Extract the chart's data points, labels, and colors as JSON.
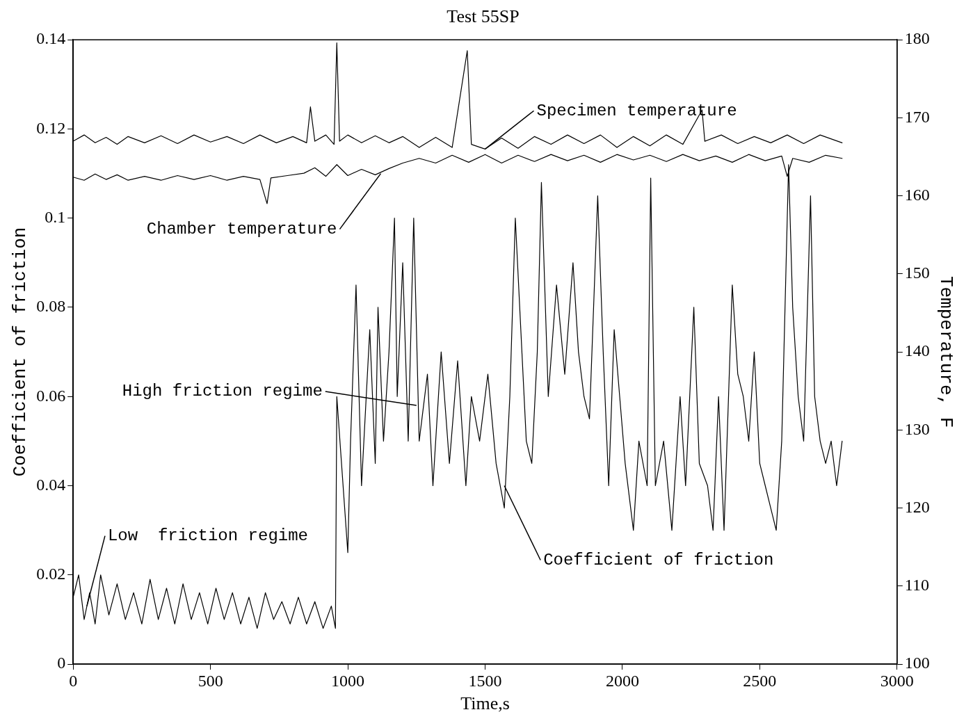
{
  "chart_data": {
    "type": "line",
    "title": "Test 55SP",
    "xlabel": "Time,s",
    "ylabel": "Coefficient of friction",
    "y2label": "Temperature, F",
    "xlim": [
      0,
      3000
    ],
    "xticks": [
      0,
      500,
      1000,
      1500,
      2000,
      2500,
      3000
    ],
    "ylim": [
      0,
      0.14
    ],
    "yticks": [
      0,
      0.02,
      0.04,
      0.06,
      0.08,
      0.1,
      0.12,
      0.14
    ],
    "y2lim": [
      100,
      180
    ],
    "y2ticks": [
      100,
      110,
      120,
      130,
      140,
      150,
      160,
      170,
      180
    ],
    "grid": false,
    "legend": false,
    "marker": "none",
    "line_style": "solid",
    "series": [
      {
        "color": "#000000",
        "x": [
          0,
          20,
          40,
          60,
          80,
          100,
          130,
          160,
          190,
          220,
          250,
          280,
          310,
          340,
          370,
          400,
          430,
          460,
          490,
          520,
          550,
          580,
          610,
          640,
          670,
          700,
          730,
          760,
          790,
          820,
          850,
          880,
          910,
          940,
          955,
          960,
          1000,
          1010,
          1030,
          1050,
          1080,
          1100,
          1110,
          1130,
          1150,
          1170,
          1180,
          1200,
          1220,
          1240,
          1260,
          1290,
          1310,
          1340,
          1370,
          1400,
          1430,
          1450,
          1480,
          1510,
          1540,
          1570,
          1590,
          1610,
          1630,
          1650,
          1670,
          1690,
          1705,
          1730,
          1760,
          1790,
          1820,
          1840,
          1860,
          1880,
          1910,
          1930,
          1950,
          1970,
          1990,
          2010,
          2040,
          2060,
          2090,
          2103,
          2120,
          2150,
          2180,
          2210,
          2230,
          2260,
          2280,
          2310,
          2330,
          2350,
          2370,
          2400,
          2420,
          2440,
          2460,
          2480,
          2500,
          2520,
          2540,
          2560,
          2580,
          2605,
          2620,
          2640,
          2660,
          2685,
          2700,
          2720,
          2740,
          2760,
          2780,
          2800
        ],
        "values": [
          0.015,
          0.02,
          0.01,
          0.016,
          0.009,
          0.02,
          0.011,
          0.018,
          0.01,
          0.016,
          0.009,
          0.019,
          0.01,
          0.017,
          0.009,
          0.018,
          0.01,
          0.016,
          0.009,
          0.017,
          0.01,
          0.016,
          0.009,
          0.015,
          0.008,
          0.016,
          0.01,
          0.014,
          0.009,
          0.015,
          0.009,
          0.014,
          0.008,
          0.013,
          0.008,
          0.06,
          0.025,
          0.05,
          0.085,
          0.04,
          0.075,
          0.045,
          0.08,
          0.05,
          0.07,
          0.1,
          0.06,
          0.09,
          0.05,
          0.1,
          0.05,
          0.065,
          0.04,
          0.07,
          0.045,
          0.068,
          0.04,
          0.06,
          0.05,
          0.065,
          0.045,
          0.035,
          0.06,
          0.1,
          0.075,
          0.05,
          0.045,
          0.07,
          0.108,
          0.06,
          0.085,
          0.065,
          0.09,
          0.07,
          0.06,
          0.055,
          0.105,
          0.07,
          0.04,
          0.075,
          0.06,
          0.045,
          0.03,
          0.05,
          0.04,
          0.109,
          0.04,
          0.05,
          0.03,
          0.06,
          0.04,
          0.08,
          0.045,
          0.04,
          0.03,
          0.06,
          0.03,
          0.085,
          0.065,
          0.06,
          0.05,
          0.07,
          0.045,
          0.04,
          0.035,
          0.03,
          0.05,
          0.112,
          0.08,
          0.06,
          0.05,
          0.105,
          0.06,
          0.05,
          0.045,
          0.05,
          0.04,
          0.05
        ]
      },
      {
        "color": "#000000",
        "axis": "y2",
        "x": [
          0,
          40,
          80,
          120,
          160,
          200,
          260,
          320,
          380,
          440,
          500,
          560,
          620,
          680,
          740,
          800,
          850,
          864,
          880,
          920,
          950,
          960,
          970,
          1000,
          1050,
          1100,
          1150,
          1200,
          1260,
          1320,
          1380,
          1435,
          1450,
          1500,
          1560,
          1620,
          1680,
          1740,
          1800,
          1860,
          1920,
          1980,
          2040,
          2100,
          2160,
          2220,
          2290,
          2300,
          2360,
          2420,
          2480,
          2540,
          2600,
          2660,
          2720,
          2800
        ],
        "values": [
          167,
          167.8,
          166.8,
          167.5,
          166.6,
          167.6,
          166.8,
          167.7,
          166.7,
          167.8,
          166.9,
          167.6,
          166.7,
          167.8,
          166.8,
          167.6,
          166.8,
          171.4,
          167,
          167.8,
          166.6,
          179.6,
          167,
          167.8,
          166.8,
          167.7,
          166.8,
          167.6,
          166.2,
          167.5,
          166.2,
          178.6,
          166.6,
          166,
          167.4,
          166.1,
          167.6,
          166.6,
          167.8,
          166.7,
          167.8,
          166.2,
          167.6,
          166.4,
          167.8,
          166.6,
          171,
          167,
          167.8,
          166.7,
          167.6,
          166.8,
          167.8,
          166.7,
          167.8,
          166.8
        ]
      },
      {
        "color": "#000000",
        "axis": "y2",
        "x": [
          0,
          40,
          80,
          120,
          160,
          200,
          260,
          320,
          380,
          440,
          500,
          560,
          620,
          680,
          706,
          720,
          780,
          840,
          880,
          920,
          960,
          1000,
          1050,
          1100,
          1150,
          1200,
          1260,
          1320,
          1380,
          1440,
          1500,
          1560,
          1620,
          1680,
          1740,
          1800,
          1860,
          1920,
          1980,
          2040,
          2100,
          2160,
          2220,
          2280,
          2340,
          2400,
          2460,
          2520,
          2580,
          2600,
          2620,
          2680,
          2740,
          2800
        ],
        "values": [
          162.4,
          162,
          162.8,
          162.1,
          162.7,
          162,
          162.5,
          162,
          162.6,
          162.1,
          162.6,
          162,
          162.5,
          162.1,
          159,
          162.3,
          162.6,
          162.9,
          163.6,
          162.5,
          164,
          162.6,
          163.4,
          162.7,
          163.5,
          164.2,
          164.8,
          164.2,
          165.2,
          164.3,
          165.3,
          164.2,
          165.2,
          164.4,
          165.3,
          164.5,
          165.2,
          164.3,
          165.3,
          164.6,
          165.2,
          164.4,
          165.3,
          164.5,
          165.1,
          164.3,
          165.3,
          164.5,
          165.1,
          162.5,
          164.8,
          164.3,
          165.2,
          164.8
        ]
      }
    ],
    "annotations": [
      {
        "text": "Specimen temperature",
        "x": 1500,
        "y": 0.1155
      },
      {
        "text": "Chamber temperature",
        "x": 1120,
        "y": 0.11
      },
      {
        "text": "High friction regime",
        "x": 1250,
        "y": 0.058
      },
      {
        "text": "Low  friction regime",
        "x": 50,
        "y": 0.013
      },
      {
        "text": "Coefficient of friction",
        "x": 1570,
        "y": 0.04
      }
    ]
  }
}
